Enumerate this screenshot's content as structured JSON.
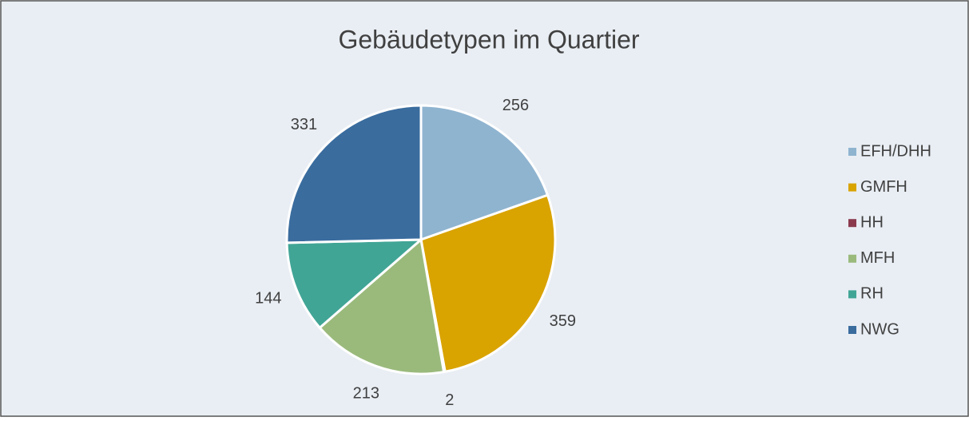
{
  "chart_data": {
    "type": "pie",
    "title": "Gebäudetypen im Quartier",
    "categories": [
      "EFH/DHH",
      "GMFH",
      "HH",
      "MFH",
      "RH",
      "NWG"
    ],
    "values": [
      256,
      359,
      2,
      213,
      144,
      331
    ],
    "colors": [
      "#8fb4d0",
      "#d9a300",
      "#8b3a4e",
      "#9aba7c",
      "#41a596",
      "#3a6c9e"
    ],
    "legend": "right"
  }
}
